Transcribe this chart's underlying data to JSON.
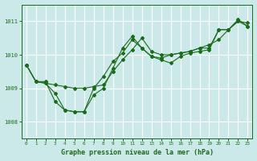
{
  "title": "Graphe pression niveau de la mer (hPa)",
  "bg_color": "#cce9e9",
  "grid_color": "#ffffff",
  "line_color": "#1a6b1a",
  "marker_color": "#1a6b1a",
  "xlim": [
    -0.5,
    23.5
  ],
  "ylim": [
    1007.5,
    1011.5
  ],
  "yticks": [
    1008,
    1009,
    1010,
    1011
  ],
  "xticks": [
    0,
    1,
    2,
    3,
    4,
    5,
    6,
    7,
    8,
    9,
    10,
    11,
    12,
    13,
    14,
    15,
    16,
    17,
    18,
    19,
    20,
    21,
    22,
    23
  ],
  "series": [
    [
      1009.7,
      1009.2,
      1009.2,
      1008.6,
      1008.35,
      1008.3,
      1008.3,
      1008.8,
      1009.0,
      1009.6,
      1010.2,
      1010.55,
      1010.2,
      1009.95,
      1009.85,
      1009.75,
      1009.95,
      1010.05,
      1010.1,
      1010.15,
      1010.75,
      1010.75,
      1011.0,
      1010.95
    ],
    [
      1009.7,
      1009.2,
      1009.15,
      1009.1,
      1009.05,
      1009.0,
      1009.0,
      1009.05,
      1009.1,
      1009.5,
      1009.85,
      1010.15,
      1010.5,
      1010.1,
      1010.0,
      1010.0,
      1010.05,
      1010.1,
      1010.2,
      1010.3,
      1010.45,
      1010.75,
      1011.05,
      1010.85
    ],
    [
      1009.7,
      1009.2,
      1009.15,
      1008.85,
      1008.35,
      1008.3,
      1008.3,
      1009.0,
      1009.35,
      1009.8,
      1010.05,
      1010.45,
      1010.2,
      1009.95,
      1009.9,
      1010.0,
      1010.05,
      1010.1,
      1010.2,
      1010.2,
      1010.75,
      1010.75,
      1011.0,
      1010.85
    ]
  ]
}
